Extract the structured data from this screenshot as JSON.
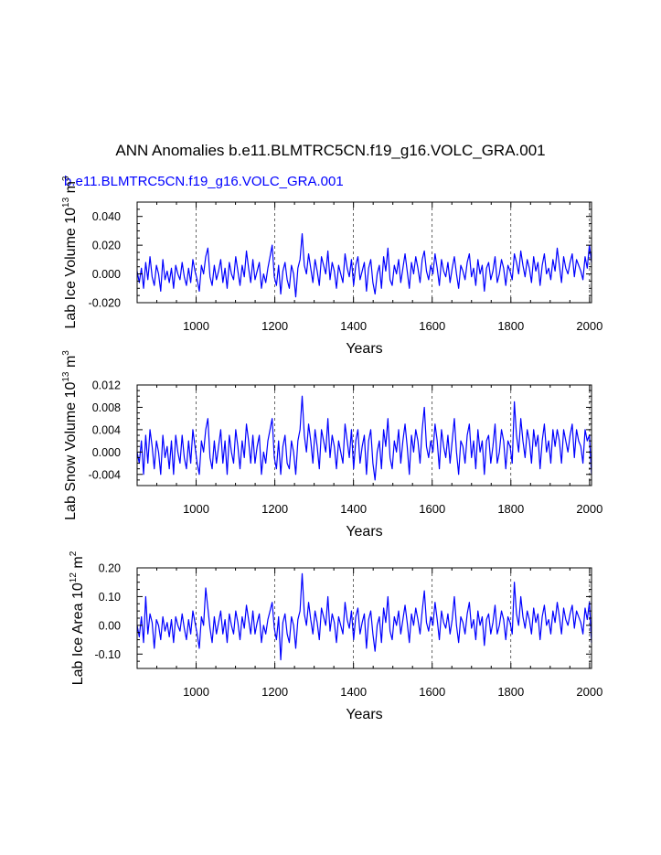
{
  "title": "ANN Anomalies b.e11.BLMTRC5CN.f19_g16.VOLC_GRA.001",
  "subtitle": "b.e11.BLMTRC5CN.f19_g16.VOLC_GRA.001",
  "colors": {
    "line": "#0000ff",
    "axis": "#000000",
    "grid": "#000000"
  },
  "chart_data": [
    {
      "type": "line",
      "ylabel": "Lab Ice Volume 10",
      "ylabel_sup1": "13",
      "ylabel_mid": " m",
      "ylabel_sup2": "3",
      "xlabel": "Years",
      "xlim": [
        850,
        2005
      ],
      "ylim": [
        -0.02,
        0.05
      ],
      "yticks": [
        -0.02,
        0.0,
        0.02,
        0.04
      ],
      "ytick_labels": [
        "-0.020",
        "0.000",
        "0.020",
        "0.040"
      ],
      "xticks": [
        1000,
        1200,
        1400,
        1600,
        1800,
        2000
      ],
      "xtick_labels": [
        "1000",
        "1200",
        "1400",
        "1600",
        "1800",
        "2000"
      ],
      "grid": "dashed vertical at x ticks",
      "series": [
        {
          "name": "b.e11.BLMTRC5CN.f19_g16.VOLC_GRA.001",
          "x_start": 850,
          "x_end": 2005,
          "values": [
            0.002,
            -0.006,
            0.004,
            -0.01,
            0.008,
            -0.004,
            0.012,
            -0.002,
            -0.008,
            0.006,
            0.0,
            -0.012,
            0.01,
            -0.004,
            0.002,
            -0.006,
            0.004,
            -0.01,
            0.006,
            0.0,
            -0.004,
            0.008,
            -0.002,
            -0.008,
            0.004,
            -0.006,
            0.01,
            0.002,
            -0.004,
            -0.012,
            0.006,
            0.0,
            0.012,
            0.018,
            -0.002,
            -0.008,
            0.006,
            -0.004,
            0.002,
            0.01,
            -0.006,
            0.004,
            -0.01,
            0.008,
            0.0,
            -0.004,
            0.012,
            0.002,
            -0.008,
            0.006,
            -0.002,
            0.016,
            0.004,
            -0.006,
            0.01,
            -0.004,
            0.002,
            0.008,
            -0.01,
            0.0,
            -0.006,
            0.004,
            0.012,
            0.02,
            -0.002,
            -0.008,
            0.006,
            -0.014,
            0.002,
            0.008,
            -0.004,
            -0.01,
            0.006,
            0.0,
            -0.016,
            0.004,
            0.01,
            0.028,
            0.006,
            0.0,
            0.014,
            0.004,
            -0.006,
            0.01,
            0.002,
            -0.008,
            0.012,
            0.006,
            0.0,
            0.016,
            -0.004,
            0.008,
            0.002,
            -0.01,
            0.006,
            0.0,
            -0.006,
            0.014,
            0.004,
            -0.002,
            0.01,
            -0.008,
            0.006,
            0.012,
            -0.004,
            0.002,
            0.008,
            -0.012,
            0.004,
            0.01,
            -0.006,
            -0.014,
            0.0,
            0.006,
            -0.01,
            0.012,
            0.002,
            0.018,
            -0.004,
            -0.008,
            0.006,
            0.0,
            0.01,
            -0.006,
            0.004,
            0.014,
            0.002,
            -0.01,
            0.008,
            0.0,
            0.012,
            0.004,
            -0.006,
            0.01,
            0.016,
            0.002,
            -0.004,
            0.006,
            0.0,
            0.014,
            0.004,
            -0.008,
            0.01,
            0.002,
            -0.002,
            0.008,
            -0.006,
            0.004,
            0.012,
            0.0,
            -0.01,
            0.006,
            0.002,
            -0.004,
            0.008,
            0.014,
            -0.002,
            0.004,
            -0.008,
            0.01,
            0.0,
            0.006,
            -0.012,
            0.004,
            0.008,
            -0.004,
            0.002,
            0.012,
            -0.006,
            0.0,
            0.01,
            0.004,
            -0.008,
            0.006,
            0.002,
            -0.004,
            0.014,
            0.008,
            0.0,
            0.016,
            0.006,
            -0.002,
            0.01,
            0.004,
            -0.006,
            0.012,
            0.002,
            0.008,
            -0.008,
            0.006,
            0.014,
            0.0,
            0.004,
            -0.004,
            0.01,
            0.002,
            0.018,
            0.006,
            -0.006,
            0.012,
            0.004,
            0.0,
            0.008,
            0.014,
            -0.002,
            0.01,
            0.006,
            0.002,
            -0.004,
            0.012,
            0.004,
            0.02,
            0.008
          ]
        }
      ]
    },
    {
      "type": "line",
      "ylabel": "Lab Snow Volume 10",
      "ylabel_sup1": "13",
      "ylabel_mid": " m",
      "ylabel_sup2": "3",
      "xlabel": "Years",
      "xlim": [
        850,
        2005
      ],
      "ylim": [
        -0.006,
        0.012
      ],
      "yticks": [
        -0.004,
        0.0,
        0.004,
        0.008,
        0.012
      ],
      "ytick_labels": [
        "-0.004",
        "0.000",
        "0.004",
        "0.008",
        "0.012"
      ],
      "xticks": [
        1000,
        1200,
        1400,
        1600,
        1800,
        2000
      ],
      "xtick_labels": [
        "1000",
        "1200",
        "1400",
        "1600",
        "1800",
        "2000"
      ],
      "grid": "dashed vertical at x ticks",
      "series": [
        {
          "name": "b.e11.BLMTRC5CN.f19_g16.VOLC_GRA.001",
          "x_start": 850,
          "x_end": 2005,
          "values": [
            0.0,
            -0.002,
            0.002,
            -0.004,
            0.003,
            -0.002,
            0.004,
            0.001,
            -0.003,
            0.002,
            0.0,
            -0.004,
            0.003,
            -0.001,
            0.001,
            -0.003,
            0.002,
            -0.004,
            0.003,
            0.0,
            -0.002,
            0.003,
            -0.001,
            -0.003,
            0.002,
            -0.002,
            0.004,
            0.001,
            -0.002,
            -0.004,
            0.002,
            0.0,
            0.004,
            0.006,
            -0.001,
            -0.003,
            0.002,
            -0.002,
            0.001,
            0.004,
            -0.002,
            0.002,
            -0.004,
            0.003,
            0.0,
            -0.002,
            0.004,
            0.001,
            -0.003,
            0.002,
            -0.001,
            0.005,
            0.002,
            -0.002,
            0.003,
            -0.002,
            0.001,
            0.003,
            -0.004,
            0.0,
            -0.002,
            0.002,
            0.004,
            0.006,
            -0.001,
            -0.003,
            0.002,
            -0.004,
            0.001,
            0.003,
            -0.002,
            -0.003,
            0.002,
            0.0,
            -0.004,
            0.002,
            0.004,
            0.01,
            0.003,
            0.0,
            0.005,
            0.002,
            -0.002,
            0.004,
            0.001,
            -0.003,
            0.004,
            0.002,
            0.0,
            0.006,
            -0.001,
            0.003,
            0.001,
            -0.003,
            0.002,
            0.0,
            -0.002,
            0.005,
            0.002,
            -0.001,
            0.004,
            -0.003,
            0.002,
            0.004,
            -0.002,
            0.001,
            0.003,
            -0.004,
            0.002,
            0.004,
            -0.002,
            -0.005,
            0.0,
            0.002,
            -0.003,
            0.004,
            0.001,
            0.006,
            -0.001,
            -0.003,
            0.002,
            0.0,
            0.004,
            -0.002,
            0.002,
            0.005,
            0.001,
            -0.004,
            0.003,
            0.0,
            0.004,
            0.002,
            -0.002,
            0.004,
            0.008,
            0.001,
            -0.001,
            0.002,
            0.0,
            0.005,
            0.002,
            -0.003,
            0.004,
            0.001,
            -0.001,
            0.003,
            -0.002,
            0.002,
            0.006,
            0.0,
            -0.004,
            0.002,
            0.001,
            -0.002,
            0.003,
            0.005,
            -0.001,
            0.002,
            -0.003,
            0.004,
            0.0,
            0.002,
            -0.004,
            0.002,
            0.003,
            -0.002,
            0.001,
            0.005,
            -0.002,
            0.0,
            0.004,
            0.002,
            -0.003,
            0.002,
            0.001,
            -0.002,
            0.009,
            0.003,
            0.0,
            0.006,
            0.002,
            -0.001,
            0.004,
            0.002,
            -0.002,
            0.004,
            0.001,
            0.003,
            -0.003,
            0.002,
            0.005,
            0.0,
            0.002,
            -0.002,
            0.004,
            0.001,
            0.004,
            0.002,
            -0.002,
            0.004,
            0.002,
            0.0,
            0.003,
            0.005,
            -0.001,
            0.004,
            0.002,
            0.001,
            -0.002,
            0.004,
            0.002,
            0.003,
            -0.004
          ]
        }
      ]
    },
    {
      "type": "line",
      "ylabel": "Lab Ice Area 10",
      "ylabel_sup1": "12",
      "ylabel_mid": " m",
      "ylabel_sup2": "2",
      "xlabel": "Years",
      "xlim": [
        850,
        2005
      ],
      "ylim": [
        -0.15,
        0.2
      ],
      "yticks": [
        -0.1,
        0.0,
        0.1,
        0.2
      ],
      "ytick_labels": [
        "-0.10",
        "0.00",
        "0.10",
        "0.20"
      ],
      "xticks": [
        1000,
        1200,
        1400,
        1600,
        1800,
        2000
      ],
      "xtick_labels": [
        "1000",
        "1200",
        "1400",
        "1600",
        "1800",
        "2000"
      ],
      "grid": "dashed vertical at x ticks",
      "series": [
        {
          "name": "b.e11.BLMTRC5CN.f19_g16.VOLC_GRA.001",
          "x_start": 850,
          "x_end": 2005,
          "values": [
            0.0,
            -0.04,
            0.03,
            -0.06,
            0.1,
            -0.03,
            0.04,
            0.01,
            -0.08,
            0.02,
            0.0,
            -0.05,
            0.03,
            -0.02,
            0.01,
            -0.04,
            0.02,
            -0.06,
            0.03,
            0.0,
            -0.02,
            0.04,
            -0.01,
            -0.05,
            0.02,
            -0.03,
            0.05,
            0.01,
            -0.03,
            -0.08,
            0.03,
            0.0,
            0.13,
            0.06,
            -0.01,
            -0.06,
            0.03,
            -0.03,
            0.01,
            0.05,
            -0.03,
            0.02,
            -0.06,
            0.04,
            0.0,
            -0.03,
            0.05,
            0.01,
            -0.05,
            0.03,
            -0.01,
            0.07,
            0.02,
            -0.03,
            0.05,
            -0.03,
            0.01,
            0.04,
            -0.06,
            0.0,
            -0.03,
            0.02,
            0.05,
            0.08,
            -0.01,
            -0.05,
            0.03,
            -0.12,
            0.01,
            0.04,
            -0.03,
            -0.06,
            0.03,
            0.0,
            -0.08,
            0.02,
            0.05,
            0.18,
            0.04,
            0.0,
            0.08,
            0.02,
            -0.03,
            0.05,
            0.01,
            -0.05,
            0.06,
            0.03,
            0.0,
            0.1,
            -0.02,
            0.04,
            0.01,
            -0.06,
            0.03,
            0.0,
            -0.03,
            0.08,
            0.02,
            -0.01,
            0.05,
            -0.05,
            0.03,
            0.06,
            -0.03,
            0.01,
            0.04,
            -0.08,
            0.02,
            0.05,
            -0.03,
            -0.09,
            0.0,
            0.03,
            -0.06,
            0.06,
            0.01,
            0.1,
            -0.02,
            -0.05,
            0.03,
            0.0,
            0.05,
            -0.03,
            0.02,
            0.07,
            0.01,
            -0.06,
            0.04,
            0.0,
            0.06,
            0.02,
            -0.03,
            0.05,
            0.12,
            0.01,
            -0.02,
            0.03,
            0.0,
            0.08,
            0.02,
            -0.05,
            0.05,
            0.01,
            -0.01,
            0.04,
            -0.03,
            0.02,
            0.1,
            0.0,
            -0.06,
            0.03,
            0.01,
            -0.03,
            0.04,
            0.08,
            -0.01,
            0.02,
            -0.05,
            0.05,
            0.0,
            0.03,
            -0.07,
            0.02,
            0.04,
            -0.03,
            0.01,
            0.07,
            -0.03,
            0.0,
            0.05,
            0.02,
            -0.05,
            0.03,
            0.01,
            -0.03,
            0.15,
            0.04,
            0.0,
            0.1,
            0.03,
            -0.01,
            0.05,
            0.02,
            -0.03,
            0.06,
            0.01,
            0.04,
            -0.05,
            0.03,
            0.07,
            0.0,
            0.02,
            -0.03,
            0.05,
            0.01,
            0.08,
            0.03,
            -0.03,
            0.06,
            0.02,
            0.0,
            0.04,
            0.07,
            -0.01,
            0.05,
            0.03,
            0.01,
            -0.03,
            0.06,
            0.02,
            0.08,
            -0.06
          ]
        }
      ]
    }
  ]
}
